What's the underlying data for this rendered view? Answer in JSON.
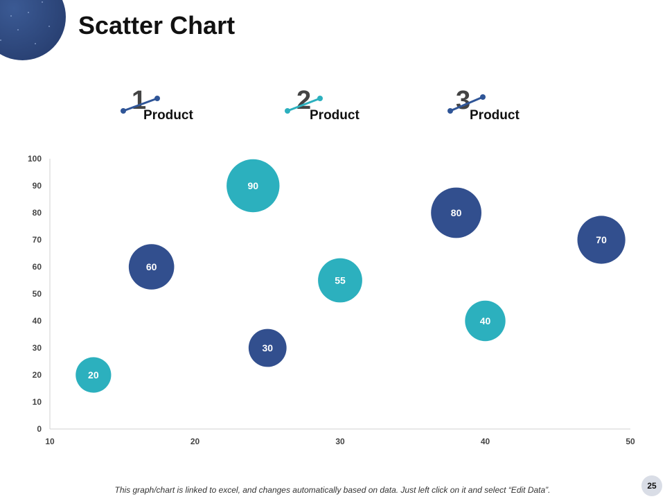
{
  "slide": {
    "title": "Scatter Chart",
    "footer_note": "This graph/chart is linked to excel, and changes automatically based on data. Just left click on it and select “Edit Data”.",
    "page_number": "25"
  },
  "legend": [
    {
      "number": "1",
      "label": "Product",
      "color": "#2f5597"
    },
    {
      "number": "2",
      "label": "Product",
      "color": "#2cb0be"
    },
    {
      "number": "3",
      "label": "Product",
      "color": "#2f5597"
    }
  ],
  "colors": {
    "dark_blue": "#324f8e",
    "teal": "#2cb0be",
    "axis": "#d0d0d0",
    "tick_text": "#444444"
  },
  "chart_data": {
    "type": "scatter",
    "title": "",
    "xlabel": "",
    "ylabel": "",
    "xlim": [
      10,
      50
    ],
    "ylim": [
      0,
      100
    ],
    "x_ticks": [
      10,
      20,
      30,
      40,
      50
    ],
    "y_ticks": [
      0,
      10,
      20,
      30,
      40,
      50,
      60,
      70,
      80,
      90,
      100
    ],
    "series": [
      {
        "name": "Product 1",
        "color": "#324f8e",
        "points": [
          {
            "x": 17,
            "y": 60,
            "label": "60"
          },
          {
            "x": 25,
            "y": 30,
            "label": "30"
          },
          {
            "x": 38,
            "y": 80,
            "label": "80"
          },
          {
            "x": 48,
            "y": 70,
            "label": "70"
          }
        ]
      },
      {
        "name": "Product 2",
        "color": "#2cb0be",
        "points": [
          {
            "x": 13,
            "y": 20,
            "label": "20"
          },
          {
            "x": 24,
            "y": 90,
            "label": "90"
          },
          {
            "x": 30,
            "y": 55,
            "label": "55"
          },
          {
            "x": 40,
            "y": 40,
            "label": "40"
          }
        ]
      }
    ]
  }
}
